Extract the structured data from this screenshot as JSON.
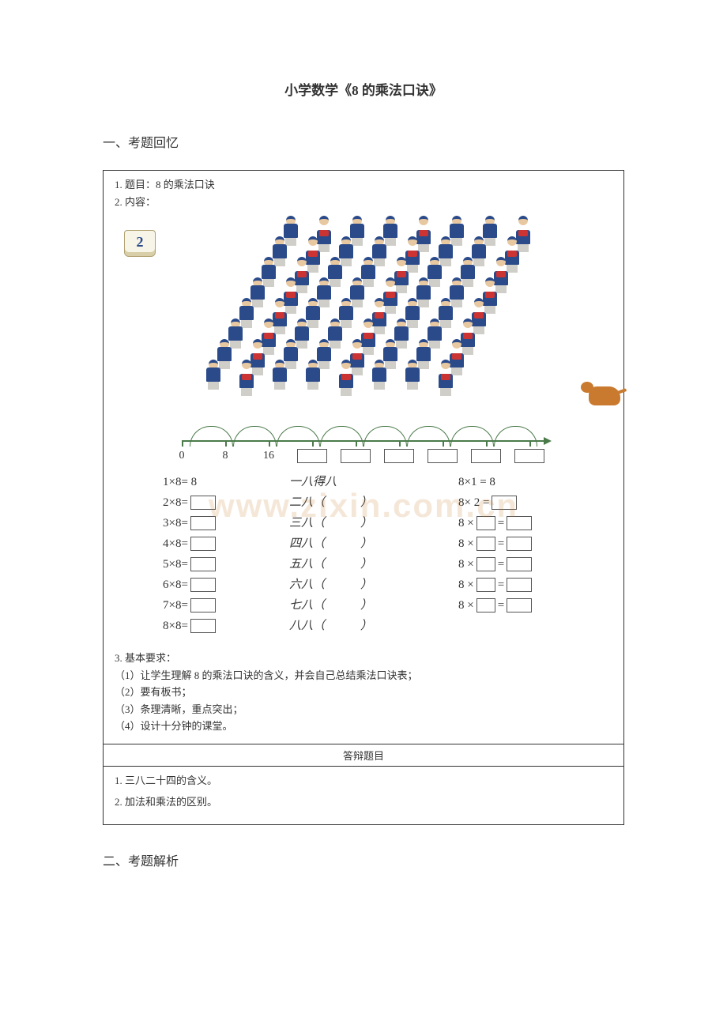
{
  "page": {
    "title": "小学数学《8 的乘法口诀》",
    "section1": "一、考题回忆",
    "section2": "二、考题解析",
    "watermark": "www.zixin.com.cn"
  },
  "problem": {
    "line_title": "1. 题目：8 的乘法口诀",
    "line_content": "2. 内容：",
    "book_num": "2",
    "band": {
      "rows": 8,
      "cols": 8,
      "skew": 32,
      "uniform_color": "#2a4a8a",
      "accent_color": "#cc3333",
      "dog_color": "#c97a2e"
    }
  },
  "number_line": {
    "start": 0,
    "step": 8,
    "arcs": 8,
    "labels": [
      "0",
      "8",
      "16"
    ],
    "blank_count": 6,
    "line_color": "#4a7a4a"
  },
  "equations": {
    "rows": [
      {
        "a": "1×8= 8",
        "a_has_blank": false,
        "b": "一八得八",
        "b_has_paren": false,
        "c_prefix": "8×1 = 8",
        "c_has_blank_mid": false,
        "c_has_blank_end": false
      },
      {
        "a": "2×8=",
        "a_has_blank": true,
        "b": "二八",
        "b_has_paren": true,
        "c_prefix": "8× 2 =",
        "c_has_blank_mid": false,
        "c_has_blank_end": true
      },
      {
        "a": "3×8=",
        "a_has_blank": true,
        "b": "三八",
        "b_has_paren": true,
        "c_prefix": "8 ×",
        "c_has_blank_mid": true,
        "c_has_blank_end": true
      },
      {
        "a": "4×8=",
        "a_has_blank": true,
        "b": "四八",
        "b_has_paren": true,
        "c_prefix": "8 ×",
        "c_has_blank_mid": true,
        "c_has_blank_end": true
      },
      {
        "a": "5×8=",
        "a_has_blank": true,
        "b": "五八",
        "b_has_paren": true,
        "c_prefix": "8 ×",
        "c_has_blank_mid": true,
        "c_has_blank_end": true
      },
      {
        "a": "6×8=",
        "a_has_blank": true,
        "b": "六八",
        "b_has_paren": true,
        "c_prefix": "8 ×",
        "c_has_blank_mid": true,
        "c_has_blank_end": true
      },
      {
        "a": "7×8=",
        "a_has_blank": true,
        "b": "七八",
        "b_has_paren": true,
        "c_prefix": "8 ×",
        "c_has_blank_mid": true,
        "c_has_blank_end": true
      },
      {
        "a": "8×8=",
        "a_has_blank": true,
        "b": "八八",
        "b_has_paren": true,
        "c_prefix": "",
        "c_has_blank_mid": false,
        "c_has_blank_end": false
      }
    ]
  },
  "requirements": {
    "header": "3. 基本要求：",
    "items": [
      "（1）让学生理解 8 的乘法口诀的含义，并会自己总结乘法口诀表；",
      "（2）要有板书；",
      "（3）条理清晰，重点突出；",
      "（4）设计十分钟的课堂。"
    ]
  },
  "debate": {
    "header": "答辩题目",
    "items": [
      "1. 三八二十四的含义。",
      "2. 加法和乘法的区别。"
    ]
  },
  "colors": {
    "text": "#333333",
    "border": "#333333",
    "bg": "#ffffff",
    "watermark": "rgba(200,120,40,0.18)"
  }
}
